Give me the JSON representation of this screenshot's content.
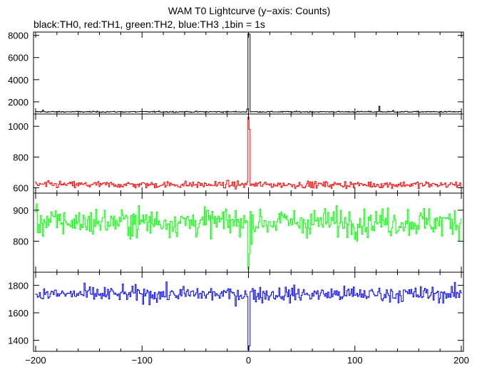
{
  "title": "WAM T0 Lightcurve (y−axis: Counts)",
  "subtitle": "black:TH0, red:TH1, green:TH2, blue:TH3 ,1bin = 1s",
  "chart_data": {
    "type": "line",
    "xlim": [
      -202,
      202
    ],
    "x_ticks": [
      -200,
      -100,
      0,
      100,
      200
    ],
    "x_tick_labels": [
      "−200",
      "−100",
      "0",
      "100",
      "200"
    ],
    "bin_seconds": 1,
    "grid": false,
    "panels": [
      {
        "name": "TH0",
        "color": "#000000",
        "ylim": [
          900,
          8300
        ],
        "y_ticks": [
          2000,
          4000,
          6000,
          8000
        ],
        "y_tick_labels": [
          "2000",
          "4000",
          "6000",
          "8000"
        ],
        "baseline": 1100,
        "noise": 35,
        "features": [
          {
            "x": 0,
            "value": 8150
          },
          {
            "x": 1,
            "value": 8100
          },
          {
            "x": -1,
            "value": 1350
          },
          {
            "x": 123,
            "value": 1600
          },
          {
            "x": -193,
            "value": 1250
          },
          {
            "x": 136,
            "value": 1220
          }
        ]
      },
      {
        "name": "TH1",
        "color": "#ff0000",
        "ylim": [
          565,
          1080
        ],
        "y_ticks": [
          600,
          800,
          1000
        ],
        "y_tick_labels": [
          "600",
          "800",
          "1000"
        ],
        "baseline": 620,
        "noise": 16,
        "features": [
          {
            "x": 0,
            "value": 1060
          },
          {
            "x": 1,
            "value": 980
          }
        ]
      },
      {
        "name": "TH2",
        "color": "#00ff00",
        "ylim": [
          700,
          955
        ],
        "y_ticks": [
          800,
          900
        ],
        "y_tick_labels": [
          "800",
          "900"
        ],
        "baseline": 862,
        "noise": 32,
        "features": [
          {
            "x": 0,
            "value": 710
          },
          {
            "x": 1,
            "value": 760
          }
        ]
      },
      {
        "name": "TH3",
        "color": "#0000ff",
        "ylim": [
          1320,
          1895
        ],
        "y_ticks": [
          1400,
          1600,
          1800
        ],
        "y_tick_labels": [
          "1400",
          "1600",
          "1800"
        ],
        "baseline": 1735,
        "noise": 40,
        "features": [
          {
            "x": 0,
            "value": 1330
          },
          {
            "x": 1,
            "value": 1360
          }
        ]
      }
    ]
  }
}
